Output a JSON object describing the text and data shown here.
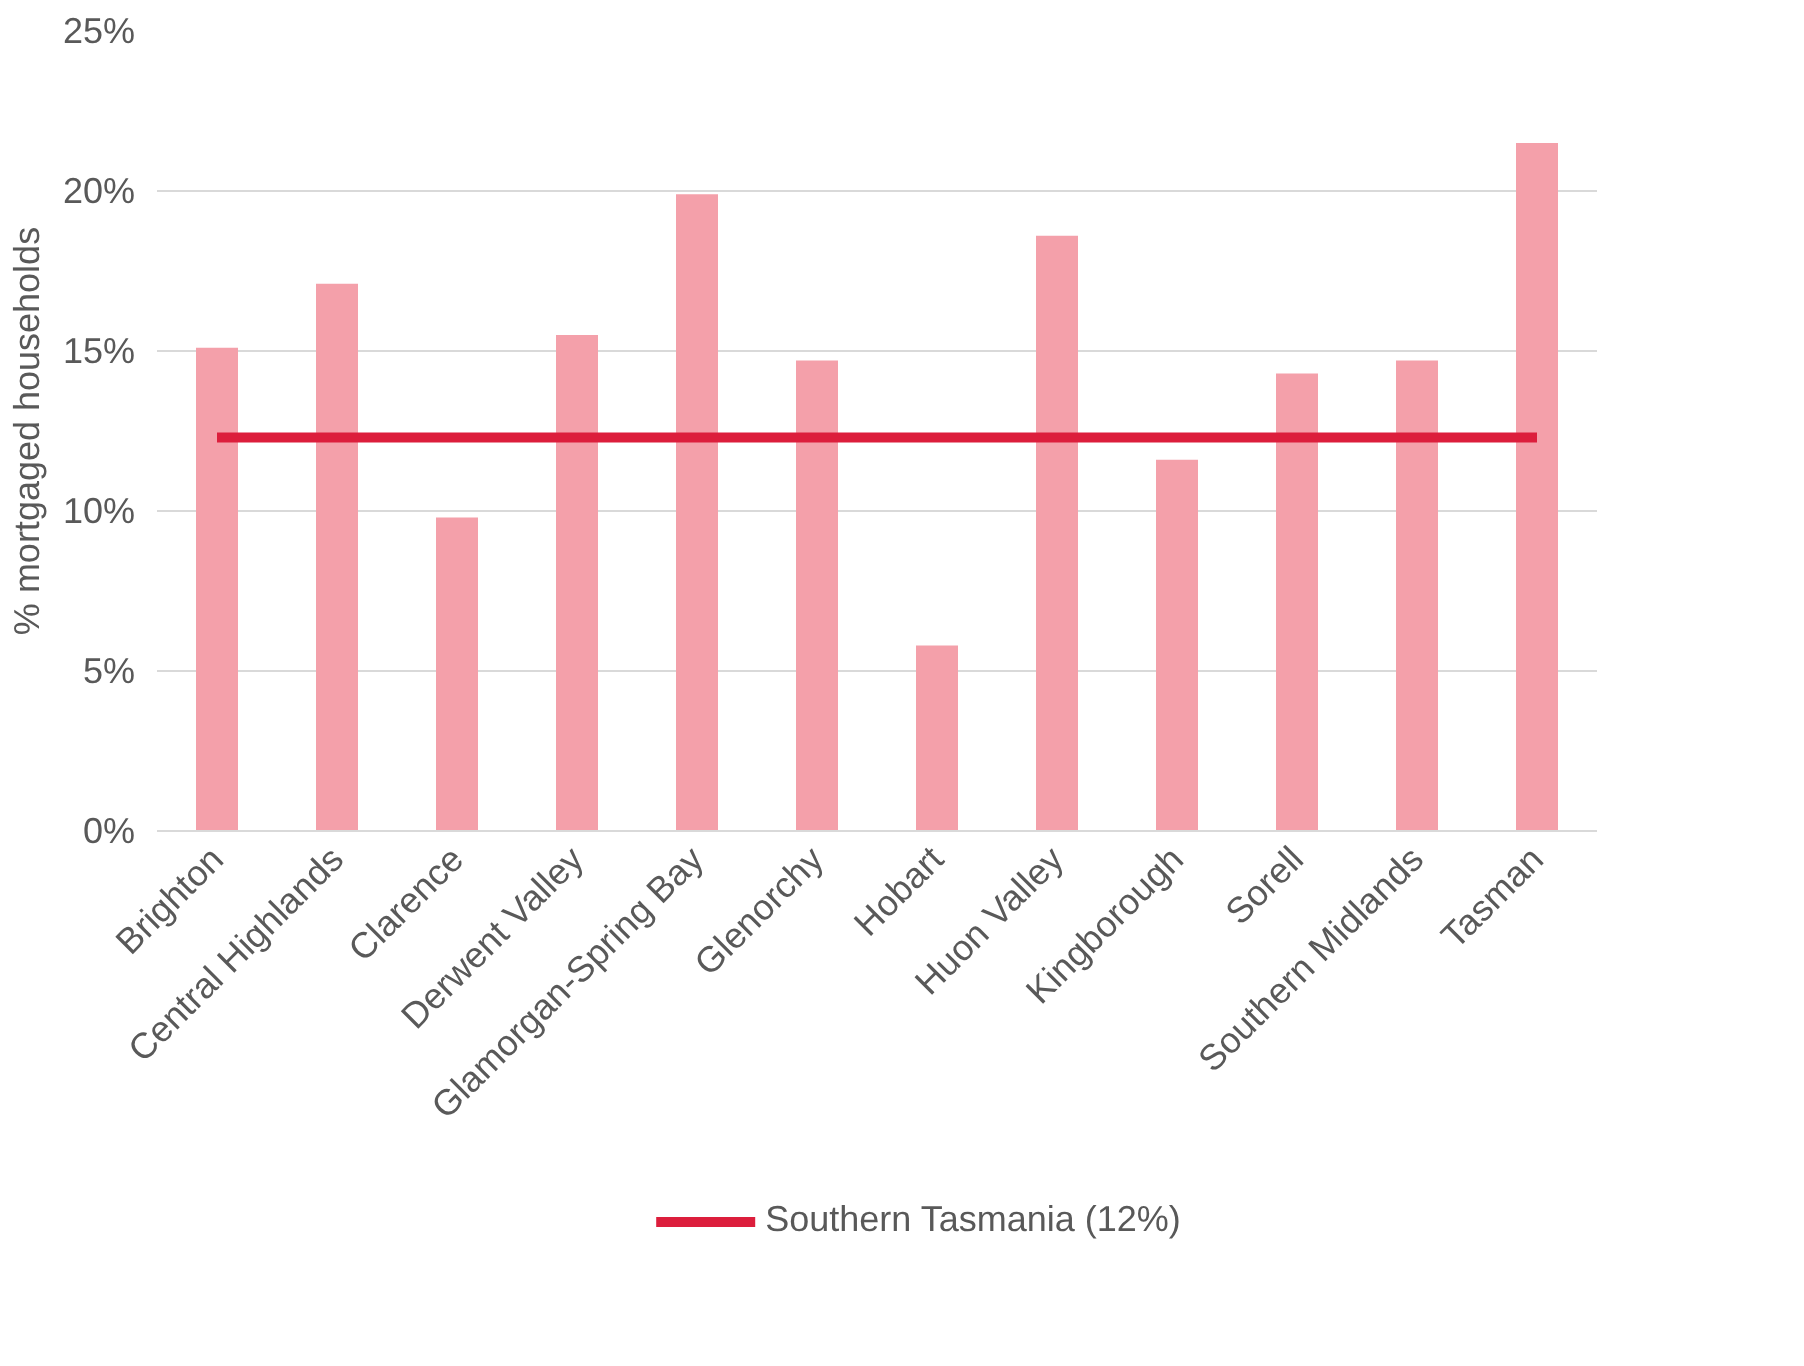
{
  "chart_data": {
    "type": "bar",
    "ylabel": "% mortgaged households",
    "categories": [
      "Brighton",
      "Central Highlands",
      "Clarence",
      "Derwent Valley",
      "Glamorgan-Spring Bay",
      "Glenorchy",
      "Hobart",
      "Huon Valley",
      "Kingborough",
      "Sorell",
      "Southern Midlands",
      "Tasman"
    ],
    "series": [
      {
        "color": "#f4a0aa",
        "values": [
          15.1,
          17.1,
          9.8,
          15.5,
          19.9,
          14.7,
          5.8,
          18.6,
          11.6,
          14.3,
          14.7,
          21.5
        ]
      },
      {
        "type": "line",
        "name": "Southern Tasmania (12%)",
        "color": "#dc1e3c",
        "values": [
          12.3,
          12.3,
          12.3,
          12.3,
          12.3,
          12.3,
          12.3,
          12.3,
          12.3,
          12.3,
          12.3,
          12.3
        ]
      }
    ],
    "ylim": [
      0,
      25
    ],
    "yticks": [
      {
        "value": 0,
        "label": "0%"
      },
      {
        "value": 5,
        "label": "5%"
      },
      {
        "value": 10,
        "label": "10%"
      },
      {
        "value": 15,
        "label": "15%"
      },
      {
        "value": 20,
        "label": "20%"
      },
      {
        "value": 25,
        "label": "25%"
      }
    ],
    "grid": "y",
    "legend": "bottom",
    "line_style": "solid"
  }
}
